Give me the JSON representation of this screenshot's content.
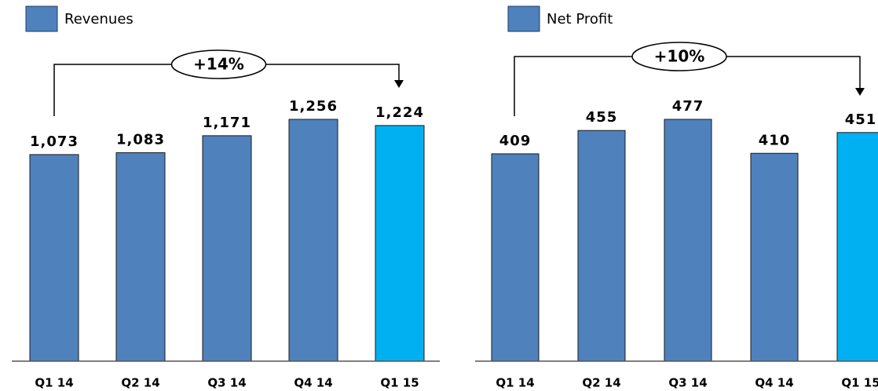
{
  "chart_data": [
    {
      "type": "bar",
      "annotation": "+14%",
      "categories": [
        "Q1 14",
        "Q2 14",
        "Q3 14",
        "Q4 14",
        "Q1 15"
      ],
      "series": [
        {
          "name": "Revenues",
          "color": "#4f81bd",
          "colors": [
            "#4f81bd",
            "#4f81bd",
            "#4f81bd",
            "#4f81bd",
            "#00b0f0"
          ],
          "values": [
            1073,
            1083,
            1171,
            1256,
            1224
          ],
          "value_labels": [
            "1,073",
            "1,083",
            "1,171",
            "1,256",
            "1,224"
          ]
        }
      ]
    },
    {
      "type": "bar",
      "annotation": "+10%",
      "categories": [
        "Q1 14",
        "Q2 14",
        "Q3 14",
        "Q4 14",
        "Q1 15"
      ],
      "series": [
        {
          "name": "Net Profit",
          "color": "#4f81bd",
          "colors": [
            "#4f81bd",
            "#4f81bd",
            "#4f81bd",
            "#4f81bd",
            "#00b0f0"
          ],
          "values": [
            409,
            455,
            477,
            410,
            451
          ]
        }
      ]
    }
  ]
}
